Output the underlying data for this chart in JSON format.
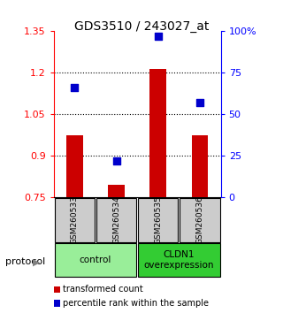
{
  "title": "GDS3510 / 243027_at",
  "samples": [
    "GSM260533",
    "GSM260534",
    "GSM260535",
    "GSM260536"
  ],
  "bar_values": [
    0.975,
    0.795,
    1.215,
    0.975
  ],
  "percentile_values": [
    0.66,
    0.22,
    0.97,
    0.57
  ],
  "ylim_left": [
    0.75,
    1.35
  ],
  "ylim_right": [
    0.0,
    1.0
  ],
  "yticks_left": [
    0.75,
    0.9,
    1.05,
    1.2,
    1.35
  ],
  "ytick_labels_left": [
    "0.75",
    "0.9",
    "1.05",
    "1.2",
    "1.35"
  ],
  "yticks_right": [
    0.0,
    0.25,
    0.5,
    0.75,
    1.0
  ],
  "ytick_labels_right": [
    "0",
    "25",
    "50",
    "75",
    "100%"
  ],
  "bar_color": "#cc0000",
  "dot_color": "#0000cc",
  "bar_bottom": 0.75,
  "groups": [
    {
      "label": "control",
      "samples": [
        0,
        1
      ],
      "color": "#99ee99"
    },
    {
      "label": "CLDN1\noverexpression",
      "samples": [
        2,
        3
      ],
      "color": "#33cc33"
    }
  ],
  "protocol_label": "protocol",
  "legend_bar_label": "transformed count",
  "legend_dot_label": "percentile rank within the sample",
  "sample_box_color": "#cccccc"
}
